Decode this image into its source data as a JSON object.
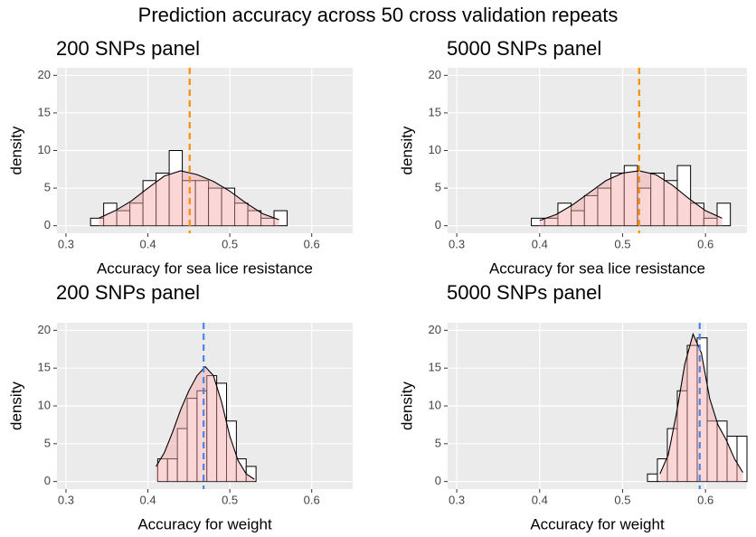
{
  "title": "Prediction accuracy across 50 cross validation repeats",
  "chart_data": [
    {
      "type": "histogram",
      "title": "200 SNPs panel",
      "x_label": "Accuracy for sea lice resistance",
      "y_label": "density",
      "bins": [
        0.33,
        0.346,
        0.362,
        0.378,
        0.394,
        0.41,
        0.426,
        0.442,
        0.458,
        0.474,
        0.49,
        0.506,
        0.522,
        0.538,
        0.554,
        0.57
      ],
      "values": [
        1,
        3,
        2,
        3,
        6,
        7,
        10,
        6,
        6,
        5,
        5,
        3,
        2,
        1,
        2
      ],
      "bar_color": "#ffffff",
      "edge_color": "#000000",
      "density": {
        "x": [
          0.34,
          0.36,
          0.38,
          0.4,
          0.42,
          0.44,
          0.46,
          0.48,
          0.5,
          0.52,
          0.54,
          0.56
        ],
        "y": [
          1.0,
          2.0,
          3.3,
          5.0,
          6.6,
          7.3,
          6.8,
          5.9,
          4.6,
          3.0,
          1.6,
          0.8
        ],
        "color": "#f4a3a3"
      },
      "vline": {
        "value": 0.451,
        "color": "#ff8c00"
      },
      "xlim": [
        0.289,
        0.65
      ],
      "xticks": [
        0.3,
        0.4,
        0.5,
        0.6
      ],
      "ylim": [
        -1,
        21
      ],
      "yticks": [
        0,
        5,
        10,
        15,
        20
      ],
      "grid": true
    },
    {
      "type": "histogram",
      "title": "5000 SNPs panel",
      "x_label": "Accuracy for sea lice resistance",
      "y_label": "density",
      "bins": [
        0.39,
        0.406,
        0.422,
        0.438,
        0.454,
        0.47,
        0.486,
        0.502,
        0.518,
        0.534,
        0.55,
        0.566,
        0.582,
        0.598,
        0.614,
        0.63
      ],
      "values": [
        1,
        1,
        3,
        2,
        4,
        5,
        7,
        8,
        5,
        7,
        6,
        8,
        3,
        1,
        3
      ],
      "bar_color": "#ffffff",
      "edge_color": "#000000",
      "density": {
        "x": [
          0.4,
          0.42,
          0.44,
          0.46,
          0.48,
          0.5,
          0.52,
          0.54,
          0.56,
          0.58,
          0.6,
          0.62
        ],
        "y": [
          0.7,
          1.5,
          2.8,
          4.4,
          6.0,
          7.0,
          7.3,
          6.8,
          5.4,
          3.6,
          2.0,
          1.0
        ],
        "color": "#f4a3a3"
      },
      "vline": {
        "value": 0.52,
        "color": "#ff8c00"
      },
      "xlim": [
        0.289,
        0.65
      ],
      "xticks": [
        0.3,
        0.4,
        0.5,
        0.6
      ],
      "ylim": [
        -1,
        21
      ],
      "yticks": [
        0,
        5,
        10,
        15,
        20
      ],
      "grid": true
    },
    {
      "type": "histogram",
      "title": "200 SNPs panel",
      "x_label": "Accuracy for weight",
      "y_label": "density",
      "bins": [
        0.412,
        0.424,
        0.436,
        0.448,
        0.46,
        0.472,
        0.484,
        0.496,
        0.508,
        0.52,
        0.532
      ],
      "values": [
        3,
        3,
        7,
        11,
        12,
        14,
        13,
        8,
        3,
        2
      ],
      "bar_color": "#ffffff",
      "edge_color": "#000000",
      "density": {
        "x": [
          0.41,
          0.42,
          0.43,
          0.44,
          0.45,
          0.46,
          0.47,
          0.48,
          0.49,
          0.5,
          0.51,
          0.52,
          0.53
        ],
        "y": [
          2.0,
          3.8,
          6.5,
          9.5,
          12.0,
          14.0,
          15.2,
          14.0,
          10.5,
          6.0,
          2.8,
          1.0,
          0.3
        ],
        "color": "#f4a3a3"
      },
      "vline": {
        "value": 0.468,
        "color": "#4a86e8"
      },
      "xlim": [
        0.289,
        0.65
      ],
      "xticks": [
        0.3,
        0.4,
        0.5,
        0.6
      ],
      "ylim": [
        -1,
        21
      ],
      "yticks": [
        0,
        5,
        10,
        15,
        20
      ],
      "grid": true
    },
    {
      "type": "histogram",
      "title": "5000 SNPs panel",
      "x_label": "Accuracy for weight",
      "y_label": "density",
      "bins": [
        0.53,
        0.542,
        0.554,
        0.566,
        0.578,
        0.59,
        0.602,
        0.614,
        0.626,
        0.638,
        0.65
      ],
      "values": [
        1,
        3,
        7,
        12,
        18,
        19,
        8,
        8,
        6,
        6
      ],
      "bar_color": "#ffffff",
      "edge_color": "#000000",
      "density": {
        "x": [
          0.545,
          0.555,
          0.565,
          0.575,
          0.585,
          0.595,
          0.605,
          0.615,
          0.625,
          0.635,
          0.645
        ],
        "y": [
          1.0,
          3.5,
          9.0,
          15.5,
          19.5,
          17.0,
          11.0,
          7.5,
          5.5,
          3.0,
          1.2
        ],
        "color": "#f4a3a3"
      },
      "vline": {
        "value": 0.593,
        "color": "#4a86e8"
      },
      "xlim": [
        0.289,
        0.65
      ],
      "xticks": [
        0.3,
        0.4,
        0.5,
        0.6
      ],
      "ylim": [
        -1,
        21
      ],
      "yticks": [
        0,
        5,
        10,
        15,
        20
      ],
      "grid": true
    }
  ]
}
